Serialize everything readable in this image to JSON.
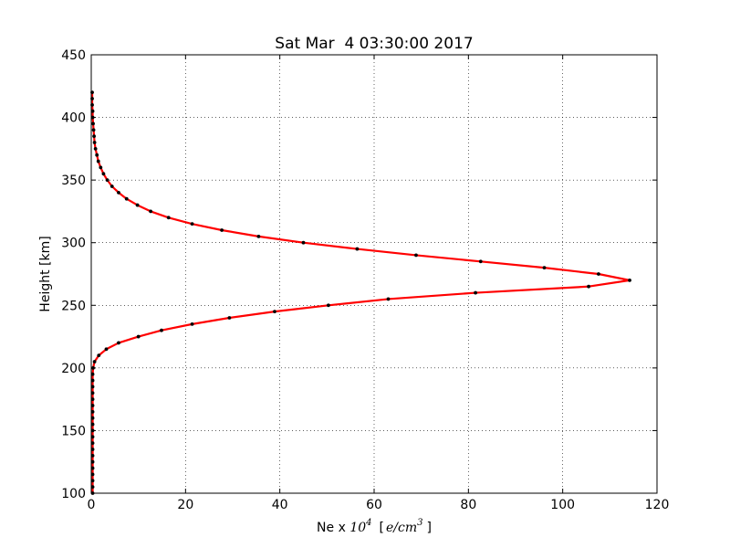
{
  "chart_data": {
    "type": "line",
    "title": "Sat Mar  4 03:30:00 2017",
    "xlabel_prefix": "Ne x ",
    "xlabel_math_base": "10",
    "xlabel_math_exp": "4",
    "xlabel_unit_open": "[",
    "xlabel_unit_base": "e/cm",
    "xlabel_unit_exp": "3",
    "xlabel_unit_close": "]",
    "ylabel": "Height [km]",
    "xlim": [
      0,
      120
    ],
    "ylim": [
      100,
      450
    ],
    "xticks": [
      0,
      20,
      40,
      60,
      80,
      100,
      120
    ],
    "yticks": [
      100,
      150,
      200,
      250,
      300,
      350,
      400,
      450
    ],
    "grid": true,
    "line_color": "#ff0000",
    "marker_color": "#000000",
    "series": [
      {
        "heights": [
          100,
          105,
          110,
          115,
          120,
          125,
          130,
          135,
          140,
          145,
          150,
          155,
          160,
          165,
          170,
          175,
          180,
          185,
          190,
          195,
          200,
          205,
          210,
          215,
          220,
          225,
          230,
          235,
          240,
          245,
          250,
          255,
          260,
          265,
          270,
          275,
          280,
          285,
          290,
          295,
          300,
          305,
          310,
          315,
          320,
          325,
          330,
          335,
          340,
          345,
          350,
          355,
          360,
          365,
          370,
          375,
          380,
          385,
          390,
          395,
          400,
          405,
          410,
          415,
          420
        ],
        "values": [
          0.3,
          0.3,
          0.3,
          0.3,
          0.3,
          0.3,
          0.3,
          0.3,
          0.3,
          0.3,
          0.3,
          0.3,
          0.3,
          0.3,
          0.3,
          0.3,
          0.3,
          0.3,
          0.3,
          0.3,
          0.4,
          0.7,
          1.6,
          3.2,
          5.8,
          10.0,
          14.9,
          21.4,
          29.3,
          38.9,
          50.3,
          63.0,
          81.5,
          105.5,
          114.2,
          107.6,
          96.1,
          82.6,
          68.9,
          56.4,
          45.0,
          35.5,
          27.7,
          21.4,
          16.4,
          12.6,
          9.8,
          7.5,
          5.8,
          4.4,
          3.4,
          2.6,
          2.0,
          1.5,
          1.2,
          0.9,
          0.7,
          0.6,
          0.5,
          0.4,
          0.3,
          0.3,
          0.2,
          0.2,
          0.2
        ]
      }
    ]
  }
}
